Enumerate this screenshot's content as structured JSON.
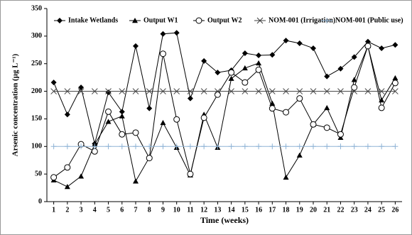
{
  "chart_data": {
    "type": "line",
    "x_label": "Time  (weeks)",
    "y_label": "Arsenic concentration  (µg L⁻¹)",
    "x": [
      1,
      2,
      3,
      4,
      5,
      6,
      7,
      8,
      9,
      10,
      11,
      12,
      13,
      14,
      15,
      16,
      17,
      18,
      19,
      20,
      21,
      22,
      23,
      24,
      25,
      26
    ],
    "xlim": [
      0.5,
      26.5
    ],
    "xticks": [
      1,
      2,
      3,
      4,
      5,
      6,
      7,
      8,
      9,
      10,
      11,
      12,
      13,
      14,
      15,
      16,
      17,
      18,
      19,
      20,
      21,
      22,
      23,
      24,
      25,
      26
    ],
    "ylim": [
      0,
      350
    ],
    "yticks": [
      0,
      50,
      100,
      150,
      200,
      250,
      300,
      350
    ],
    "legend": "top",
    "series": [
      {
        "name": "Intake Wetlands",
        "color": "#000000",
        "marker": "diamond",
        "values": [
          216,
          158,
          207,
          105,
          198,
          163,
          282,
          169,
          304,
          306,
          187,
          255,
          234,
          238,
          269,
          265,
          266,
          292,
          287,
          278,
          227,
          241,
          262,
          290,
          278,
          284
        ]
      },
      {
        "name": "Output W1",
        "color": "#000000",
        "marker": "triangle",
        "values": [
          39,
          27,
          46,
          104,
          145,
          155,
          37,
          80,
          143,
          98,
          48,
          158,
          98,
          223,
          242,
          251,
          178,
          44,
          84,
          140,
          170,
          116,
          221,
          282,
          184,
          224
        ]
      },
      {
        "name": "Output W2",
        "color": "#000000",
        "marker": "circle",
        "values": [
          44,
          62,
          104,
          91,
          163,
          122,
          125,
          79,
          268,
          149,
          50,
          152,
          194,
          234,
          216,
          239,
          169,
          162,
          187,
          140,
          134,
          122,
          207,
          282,
          170,
          215
        ]
      },
      {
        "name": "NOM-001 (Irrigation)",
        "color": "#404040",
        "marker": "x",
        "values": [
          200,
          200,
          200,
          200,
          200,
          200,
          200,
          200,
          200,
          200,
          200,
          200,
          200,
          200,
          200,
          200,
          200,
          200,
          200,
          200,
          200,
          200,
          200,
          200,
          200,
          200
        ]
      },
      {
        "name": "NOM-001 (Public use)",
        "color": "#8fb4d6",
        "marker": "plus",
        "values": [
          100,
          100,
          100,
          100,
          100,
          100,
          100,
          100,
          100,
          100,
          100,
          100,
          100,
          100,
          100,
          100,
          100,
          100,
          100,
          100,
          100,
          100,
          100,
          100,
          100,
          100
        ]
      }
    ]
  }
}
